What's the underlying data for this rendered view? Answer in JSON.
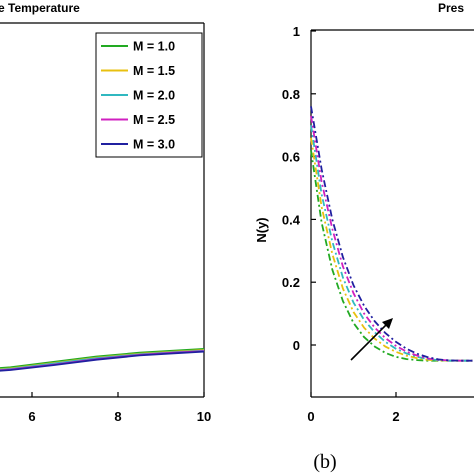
{
  "chart_data": [
    {
      "panel": "a",
      "type": "line",
      "title": "e Temperature",
      "xticks": [
        "6",
        "8",
        "10"
      ],
      "xlim_visible": [
        4.6,
        10
      ],
      "ylim": [
        0,
        1
      ],
      "x": [
        4.6,
        5.5,
        6.5,
        7.5,
        8.5,
        9.3,
        10
      ],
      "series": [
        {
          "name": "M = 1.0",
          "color": "#22aa22",
          "values": [
            0.05,
            0.055,
            0.065,
            0.075,
            0.082,
            0.086,
            0.089
          ]
        },
        {
          "name": "M = 1.5",
          "color": "#e8c010",
          "values": [
            0.048,
            0.053,
            0.063,
            0.073,
            0.08,
            0.084,
            0.087
          ]
        },
        {
          "name": "M = 2.0",
          "color": "#30b8c0",
          "values": [
            0.047,
            0.052,
            0.062,
            0.072,
            0.079,
            0.083,
            0.086
          ]
        },
        {
          "name": "M = 2.5",
          "color": "#d020c0",
          "values": [
            0.046,
            0.051,
            0.06,
            0.07,
            0.078,
            0.082,
            0.085
          ]
        },
        {
          "name": "M = 3.0",
          "color": "#2020a0",
          "values": [
            0.045,
            0.05,
            0.059,
            0.069,
            0.077,
            0.081,
            0.084
          ]
        }
      ],
      "legend": "top-right",
      "grid": false
    },
    {
      "panel": "b",
      "type": "line",
      "title": "Pres",
      "ylabel": "N(y)",
      "xticks": [
        "0",
        "2"
      ],
      "yticks": [
        "0",
        "0.2",
        "0.4",
        "0.6",
        "0.8",
        "1"
      ],
      "xlim_visible": [
        0,
        3.8
      ],
      "ylim": [
        -0.12,
        1
      ],
      "x": [
        0,
        0.25,
        0.5,
        0.75,
        1.0,
        1.25,
        1.5,
        1.75,
        2.0,
        2.25,
        2.5,
        2.75,
        3.0,
        3.25,
        3.5,
        3.8
      ],
      "series": [
        {
          "color": "#22aa22",
          "values": [
            0.62,
            0.39,
            0.24,
            0.14,
            0.07,
            0.025,
            -0.005,
            -0.025,
            -0.038,
            -0.045,
            -0.048,
            -0.05,
            -0.05,
            -0.05,
            -0.05,
            -0.05
          ]
        },
        {
          "color": "#e8c010",
          "values": [
            0.66,
            0.44,
            0.29,
            0.18,
            0.105,
            0.055,
            0.02,
            -0.005,
            -0.022,
            -0.034,
            -0.042,
            -0.047,
            -0.049,
            -0.05,
            -0.05,
            -0.05
          ]
        },
        {
          "color": "#30b8c0",
          "values": [
            0.7,
            0.48,
            0.33,
            0.215,
            0.135,
            0.08,
            0.04,
            0.01,
            -0.012,
            -0.027,
            -0.038,
            -0.045,
            -0.048,
            -0.05,
            -0.05,
            -0.05
          ]
        },
        {
          "color": "#d020c0",
          "values": [
            0.73,
            0.52,
            0.37,
            0.25,
            0.165,
            0.1,
            0.055,
            0.022,
            -0.003,
            -0.021,
            -0.034,
            -0.043,
            -0.047,
            -0.049,
            -0.05,
            -0.05
          ]
        },
        {
          "color": "#2020a0",
          "values": [
            0.76,
            0.56,
            0.4,
            0.28,
            0.19,
            0.125,
            0.075,
            0.038,
            0.01,
            -0.012,
            -0.028,
            -0.039,
            -0.046,
            -0.049,
            -0.05,
            -0.05
          ]
        }
      ],
      "annotation": "arrow: increasing M",
      "grid": false
    }
  ],
  "caption": "(b)"
}
